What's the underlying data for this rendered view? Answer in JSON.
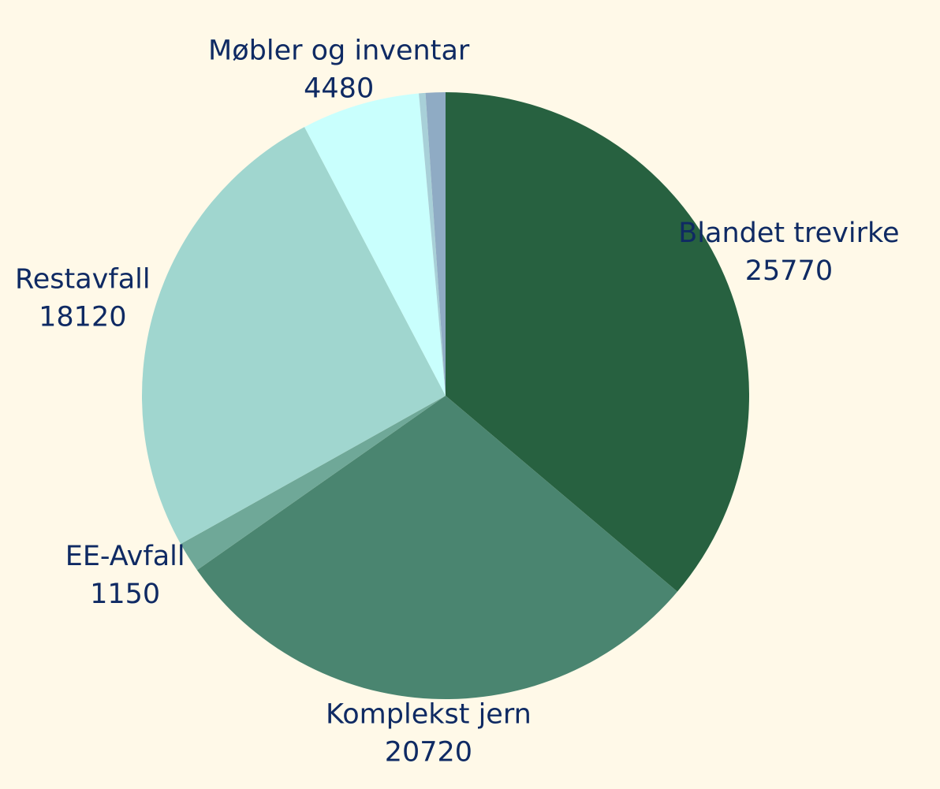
{
  "chart_data": {
    "type": "pie",
    "categories": [
      "Blandet trevirke",
      "Komplekst jern",
      "EE-Avfall",
      "Restavfall",
      "Møbler og inventar",
      null,
      null
    ],
    "values": [
      25770,
      20720,
      1150,
      18120,
      4480,
      250,
      750
    ],
    "colors": [
      "#276140",
      "#4a8570",
      "#6fa898",
      "#a0d6cf",
      "#c9fffd",
      "#a8d0d8",
      "#8fabc4"
    ],
    "start_angle": 0,
    "direction": "clockwise"
  }
}
